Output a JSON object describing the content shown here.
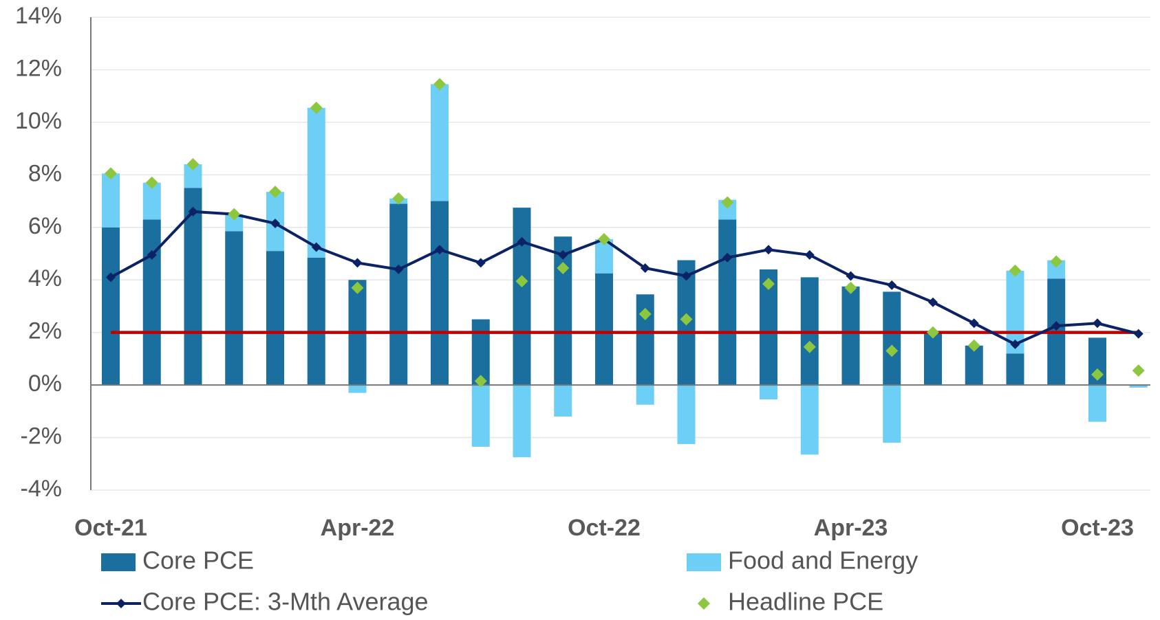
{
  "chart_data": {
    "type": "bar",
    "categories": [
      "Oct-21",
      null,
      null,
      null,
      null,
      null,
      "Apr-22",
      null,
      null,
      null,
      null,
      null,
      "Oct-22",
      null,
      null,
      null,
      null,
      null,
      "Apr-23",
      null,
      null,
      null,
      null,
      null,
      "Oct-23",
      null
    ],
    "series": [
      {
        "name": "Core PCE",
        "type": "bar",
        "color": "#1a6f9f",
        "values": [
          6.0,
          6.3,
          7.5,
          5.85,
          5.1,
          4.85,
          4.0,
          6.9,
          7.0,
          2.5,
          6.75,
          5.65,
          4.25,
          3.45,
          4.75,
          6.3,
          4.4,
          4.1,
          3.75,
          3.55,
          2.0,
          1.5,
          1.2,
          4.05,
          1.8,
          0
        ]
      },
      {
        "name": "Food and Energy",
        "type": "bar",
        "color": "#6dcff6",
        "values": [
          2.05,
          1.4,
          0.9,
          0.65,
          2.25,
          5.7,
          -0.3,
          0.2,
          4.45,
          -2.35,
          -2.75,
          -1.2,
          1.3,
          -0.75,
          -2.25,
          0.75,
          -0.55,
          -2.65,
          0,
          -2.2,
          0,
          0,
          3.15,
          0.7,
          -1.4,
          -0.1
        ]
      },
      {
        "name": "Core PCE: 3-Mth Average",
        "type": "line",
        "color": "#0b2265",
        "values": [
          4.1,
          4.95,
          6.6,
          6.5,
          6.15,
          5.25,
          4.65,
          4.4,
          5.15,
          4.65,
          5.45,
          4.95,
          5.55,
          4.45,
          4.15,
          4.85,
          5.15,
          4.95,
          4.15,
          3.8,
          3.15,
          2.35,
          1.55,
          2.25,
          2.35,
          1.95
        ]
      },
      {
        "name": "Headline PCE",
        "type": "scatter",
        "color": "#8dc63f",
        "values": [
          8.05,
          7.7,
          8.4,
          6.5,
          7.35,
          10.55,
          3.7,
          7.1,
          11.45,
          0.15,
          3.95,
          4.45,
          5.55,
          2.7,
          2.5,
          6.95,
          3.85,
          1.45,
          3.7,
          1.3,
          2.0,
          1.5,
          4.35,
          4.7,
          0.4,
          0.55
        ]
      }
    ],
    "reference_line": {
      "value": 2,
      "color": "#c00000"
    },
    "ylim": [
      -4,
      14
    ],
    "yticks": [
      {
        "value": -4,
        "label": "-4%"
      },
      {
        "value": -2,
        "label": "-2%"
      },
      {
        "value": 0,
        "label": "0%"
      },
      {
        "value": 2,
        "label": "2%"
      },
      {
        "value": 4,
        "label": "4%"
      },
      {
        "value": 6,
        "label": "6%"
      },
      {
        "value": 8,
        "label": "8%"
      },
      {
        "value": 10,
        "label": "10%"
      },
      {
        "value": 12,
        "label": "12%"
      },
      {
        "value": 14,
        "label": "14%"
      }
    ],
    "grid": true
  }
}
